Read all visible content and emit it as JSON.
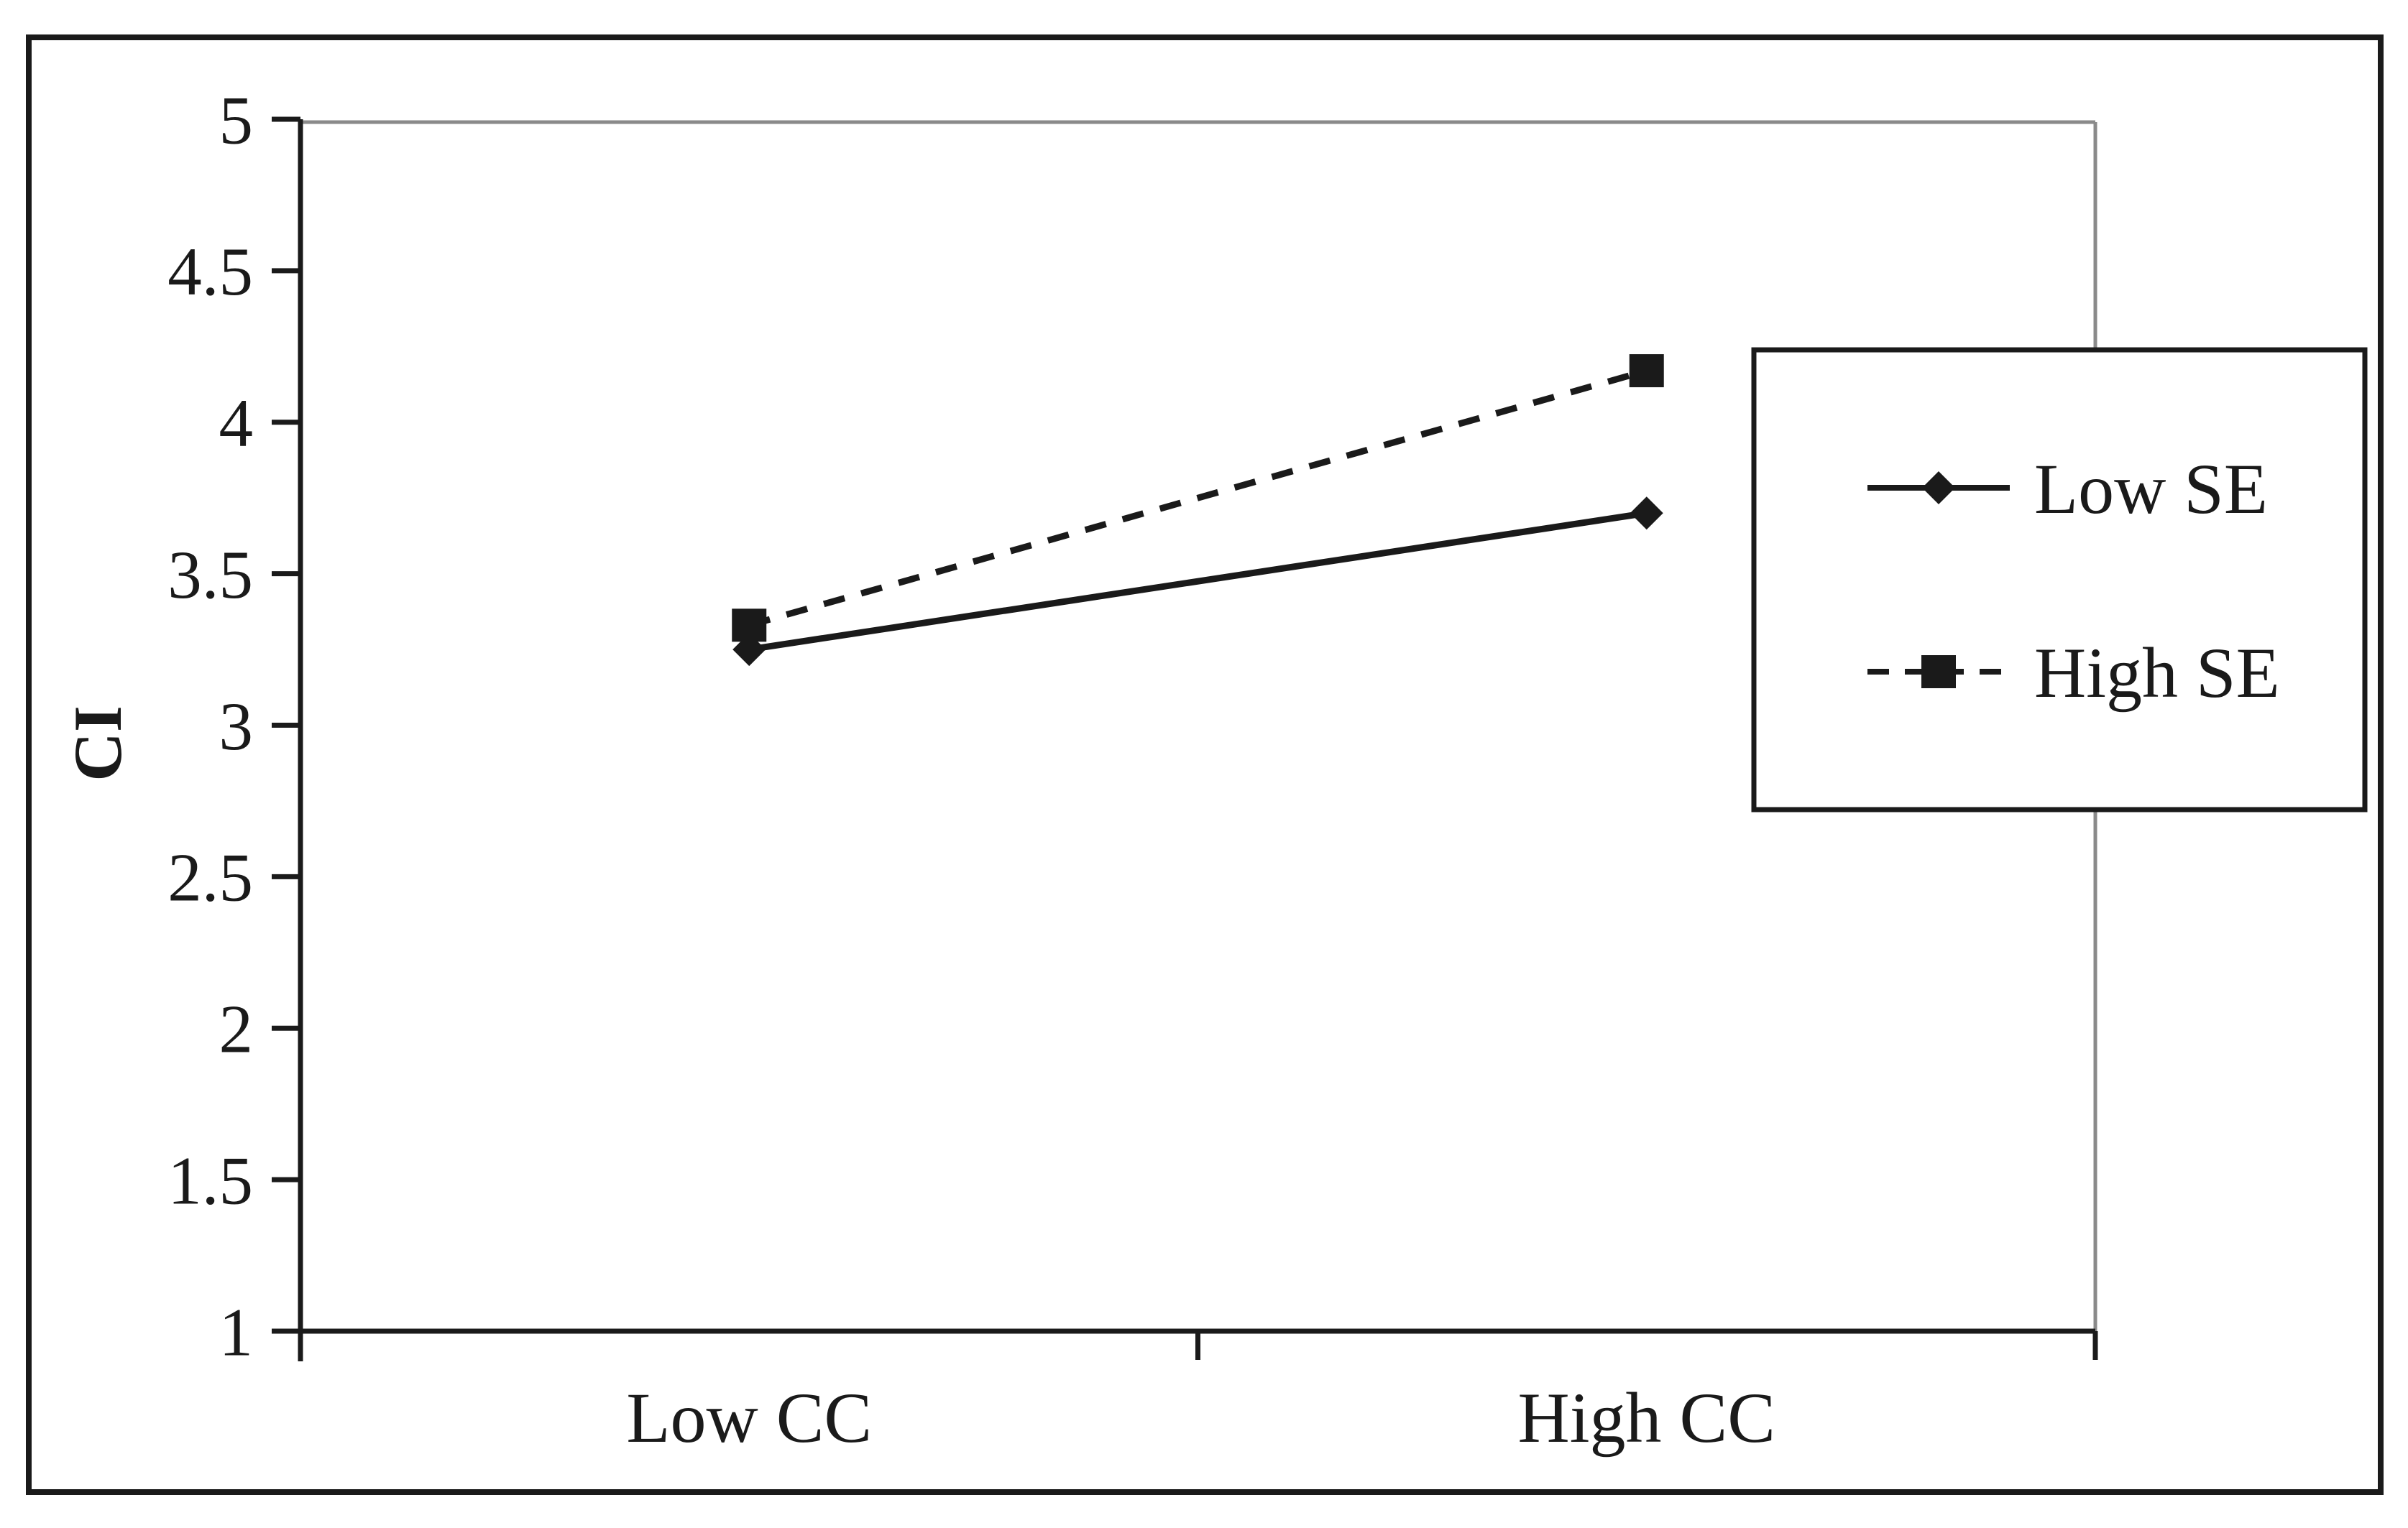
{
  "chart_data": {
    "type": "line",
    "categories": [
      "Low CC",
      "High CC"
    ],
    "series": [
      {
        "name": "Low SE",
        "values": [
          3.25,
          3.7
        ],
        "line_style": "solid",
        "marker": "diamond",
        "color": "#1a1a1a"
      },
      {
        "name": "High SE",
        "values": [
          3.33,
          4.17
        ],
        "line_style": "dashed",
        "marker": "square",
        "color": "#1a1a1a"
      }
    ],
    "title": "",
    "xlabel": "",
    "ylabel": "CI",
    "ylim": [
      1,
      5
    ],
    "ytick_step": 0.5,
    "ytick_labels": [
      "1",
      "1.5",
      "2",
      "2.5",
      "3",
      "3.5",
      "4",
      "4.5",
      "5"
    ],
    "legend_position": "center-right",
    "grid": false
  },
  "legend": {
    "items": [
      {
        "label": "Low SE"
      },
      {
        "label": "High SE"
      }
    ]
  },
  "colors": {
    "ink": "#1a1a1a",
    "plot_border_gray": "#8a8a8a",
    "background": "#ffffff"
  }
}
